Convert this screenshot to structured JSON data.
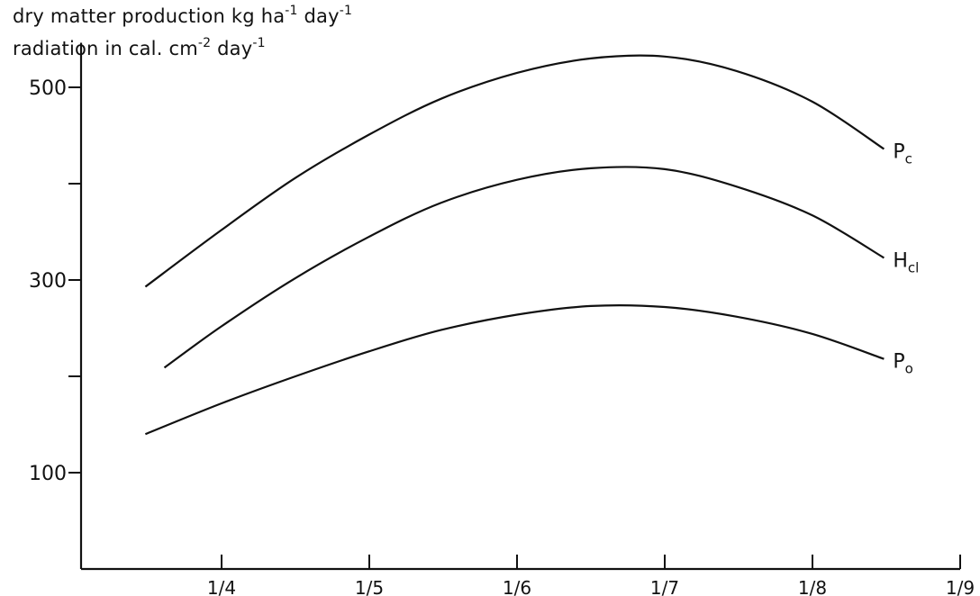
{
  "chart_data": {
    "type": "line",
    "ylabel_line1": {
      "text": "dry matter production kg ha",
      "sup1": "-1",
      "mid": " day",
      "sup2": "-1"
    },
    "ylabel_line2": {
      "text": "radiation in cal. cm",
      "sup1": "-2",
      "mid": " day",
      "sup2": "-1"
    },
    "ylim": [
      0,
      550
    ],
    "yticks": [
      100,
      200,
      300,
      400,
      500
    ],
    "ytick_labels": [
      "100",
      "",
      "300",
      "",
      "500"
    ],
    "xlim": [
      "1/3",
      "1/9"
    ],
    "xticks": [
      "1/4",
      "1/5",
      "1/6",
      "1/7",
      "1/8",
      "1/9"
    ],
    "grid": false,
    "series": [
      {
        "name": "Pc",
        "base": "P",
        "sub": "c",
        "x": [
          "16/3",
          "1/4",
          "16/4",
          "1/5",
          "16/5",
          "1/6",
          "16/6",
          "1/7",
          "16/7",
          "1/8",
          "16/8"
        ],
        "y": [
          293,
          352,
          406,
          451,
          488,
          515,
          530,
          532,
          517,
          485,
          436
        ]
      },
      {
        "name": "Hcl",
        "base": "H",
        "sub": "cl",
        "x": [
          "20/3",
          "1/4",
          "16/4",
          "1/5",
          "16/5",
          "1/6",
          "16/6",
          "1/7",
          "16/7",
          "1/8",
          "16/8"
        ],
        "y": [
          209,
          252,
          302,
          345,
          380,
          404,
          416,
          415,
          397,
          367,
          323
        ]
      },
      {
        "name": "Po",
        "base": "P",
        "sub": "o",
        "x": [
          "16/3",
          "1/4",
          "16/4",
          "1/5",
          "16/5",
          "1/6",
          "16/6",
          "1/7",
          "16/7",
          "1/8",
          "16/8"
        ],
        "y": [
          140,
          172,
          200,
          226,
          248,
          264,
          273,
          272,
          262,
          244,
          218
        ]
      }
    ]
  }
}
